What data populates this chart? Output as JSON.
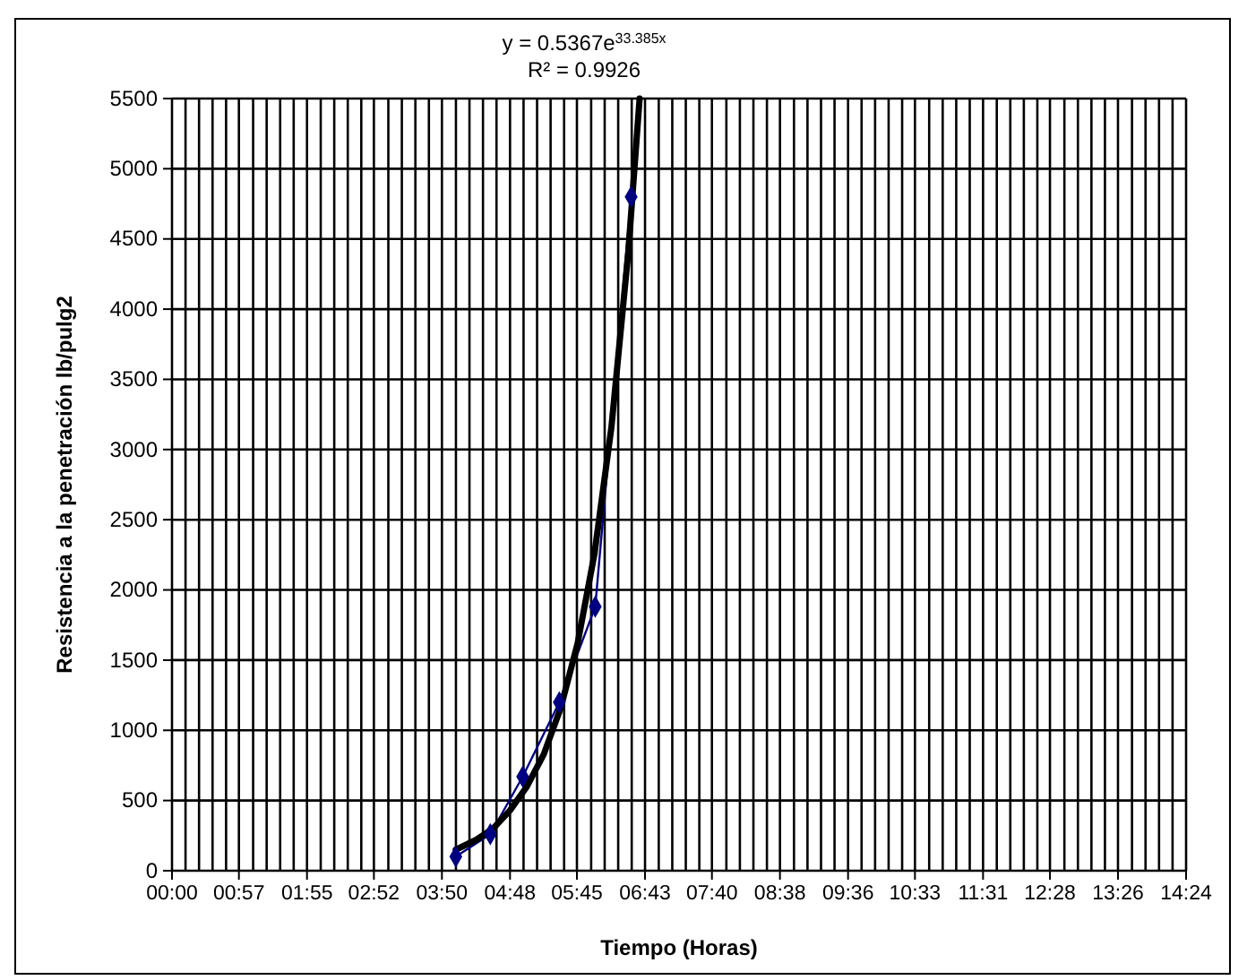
{
  "chart_data": {
    "type": "line",
    "xlabel": "Tiempo (Horas)",
    "ylabel": "Resistencia a la penetración lb/pulg2",
    "annotations": [
      "y = 0.5367e$^{33.385x}$",
      "R² = 0.9926"
    ],
    "xlim": [
      0,
      14.4
    ],
    "ylim": [
      0,
      5500
    ],
    "xticks": [
      {
        "value": 0,
        "label": "00:00"
      },
      {
        "value": 0.192,
        "label": null
      },
      {
        "value": 0.384,
        "label": null
      },
      {
        "value": 0.576,
        "label": null
      },
      {
        "value": 0.768,
        "label": null
      },
      {
        "value": 0.95,
        "label": "00:57"
      },
      {
        "value": 1.152,
        "label": null
      },
      {
        "value": 1.344,
        "label": null
      },
      {
        "value": 1.536,
        "label": null
      },
      {
        "value": 1.728,
        "label": null
      },
      {
        "value": 1.917,
        "label": "01:55"
      },
      {
        "value": 2.112,
        "label": null
      },
      {
        "value": 2.304,
        "label": null
      },
      {
        "value": 2.496,
        "label": null
      },
      {
        "value": 2.688,
        "label": null
      },
      {
        "value": 2.867,
        "label": "02:52"
      },
      {
        "value": 3.072,
        "label": null
      },
      {
        "value": 3.264,
        "label": null
      },
      {
        "value": 3.456,
        "label": null
      },
      {
        "value": 3.648,
        "label": null
      },
      {
        "value": 3.833,
        "label": "03:50"
      },
      {
        "value": 4.032,
        "label": null
      },
      {
        "value": 4.224,
        "label": null
      },
      {
        "value": 4.416,
        "label": null
      },
      {
        "value": 4.608,
        "label": null
      },
      {
        "value": 4.8,
        "label": "04:48"
      },
      {
        "value": 4.992,
        "label": null
      },
      {
        "value": 5.184,
        "label": null
      },
      {
        "value": 5.376,
        "label": null
      },
      {
        "value": 5.568,
        "label": null
      },
      {
        "value": 5.75,
        "label": "05:45"
      },
      {
        "value": 5.952,
        "label": null
      },
      {
        "value": 6.144,
        "label": null
      },
      {
        "value": 6.336,
        "label": null
      },
      {
        "value": 6.528,
        "label": null
      },
      {
        "value": 6.717,
        "label": "06:43"
      },
      {
        "value": 6.912,
        "label": null
      },
      {
        "value": 7.104,
        "label": null
      },
      {
        "value": 7.296,
        "label": null
      },
      {
        "value": 7.488,
        "label": null
      },
      {
        "value": 7.667,
        "label": "07:40"
      },
      {
        "value": 7.872,
        "label": null
      },
      {
        "value": 8.064,
        "label": null
      },
      {
        "value": 8.256,
        "label": null
      },
      {
        "value": 8.448,
        "label": null
      },
      {
        "value": 8.633,
        "label": "08:38"
      },
      {
        "value": 8.832,
        "label": null
      },
      {
        "value": 9.024,
        "label": null
      },
      {
        "value": 9.216,
        "label": null
      },
      {
        "value": 9.408,
        "label": null
      },
      {
        "value": 9.6,
        "label": "09:36"
      },
      {
        "value": 9.792,
        "label": null
      },
      {
        "value": 9.984,
        "label": null
      },
      {
        "value": 10.176,
        "label": null
      },
      {
        "value": 10.368,
        "label": null
      },
      {
        "value": 10.55,
        "label": "10:33"
      },
      {
        "value": 10.752,
        "label": null
      },
      {
        "value": 10.944,
        "label": null
      },
      {
        "value": 11.136,
        "label": null
      },
      {
        "value": 11.328,
        "label": null
      },
      {
        "value": 11.517,
        "label": "11:31"
      },
      {
        "value": 11.712,
        "label": null
      },
      {
        "value": 11.904,
        "label": null
      },
      {
        "value": 12.096,
        "label": null
      },
      {
        "value": 12.288,
        "label": null
      },
      {
        "value": 12.467,
        "label": "12:28"
      },
      {
        "value": 12.672,
        "label": null
      },
      {
        "value": 12.864,
        "label": null
      },
      {
        "value": 13.056,
        "label": null
      },
      {
        "value": 13.248,
        "label": null
      },
      {
        "value": 13.433,
        "label": "13:26"
      },
      {
        "value": 13.632,
        "label": null
      },
      {
        "value": 13.824,
        "label": null
      },
      {
        "value": 14.016,
        "label": null
      },
      {
        "value": 14.208,
        "label": null
      },
      {
        "value": 14.4,
        "label": "14:24"
      }
    ],
    "yticks": [
      0,
      500,
      1000,
      1500,
      2000,
      2500,
      3000,
      3500,
      4000,
      4500,
      5000,
      5500
    ],
    "grid": true,
    "series": [
      {
        "color": "#000080",
        "marker": "diamond",
        "x": [
          4.03,
          4.52,
          4.98,
          5.5,
          6.01,
          6.52
        ],
        "values": [
          100,
          260,
          670,
          1200,
          1880,
          4800
        ]
      },
      {
        "color": "#000000",
        "marker": "none",
        "x": [
          4.03,
          4.32,
          4.56,
          4.8,
          5.04,
          5.28,
          5.52,
          5.76,
          6.0,
          6.24,
          6.48,
          6.64
        ],
        "values": [
          150,
          220,
          300,
          430,
          600,
          830,
          1160,
          1620,
          2260,
          3160,
          4410,
          5500
        ]
      }
    ]
  }
}
